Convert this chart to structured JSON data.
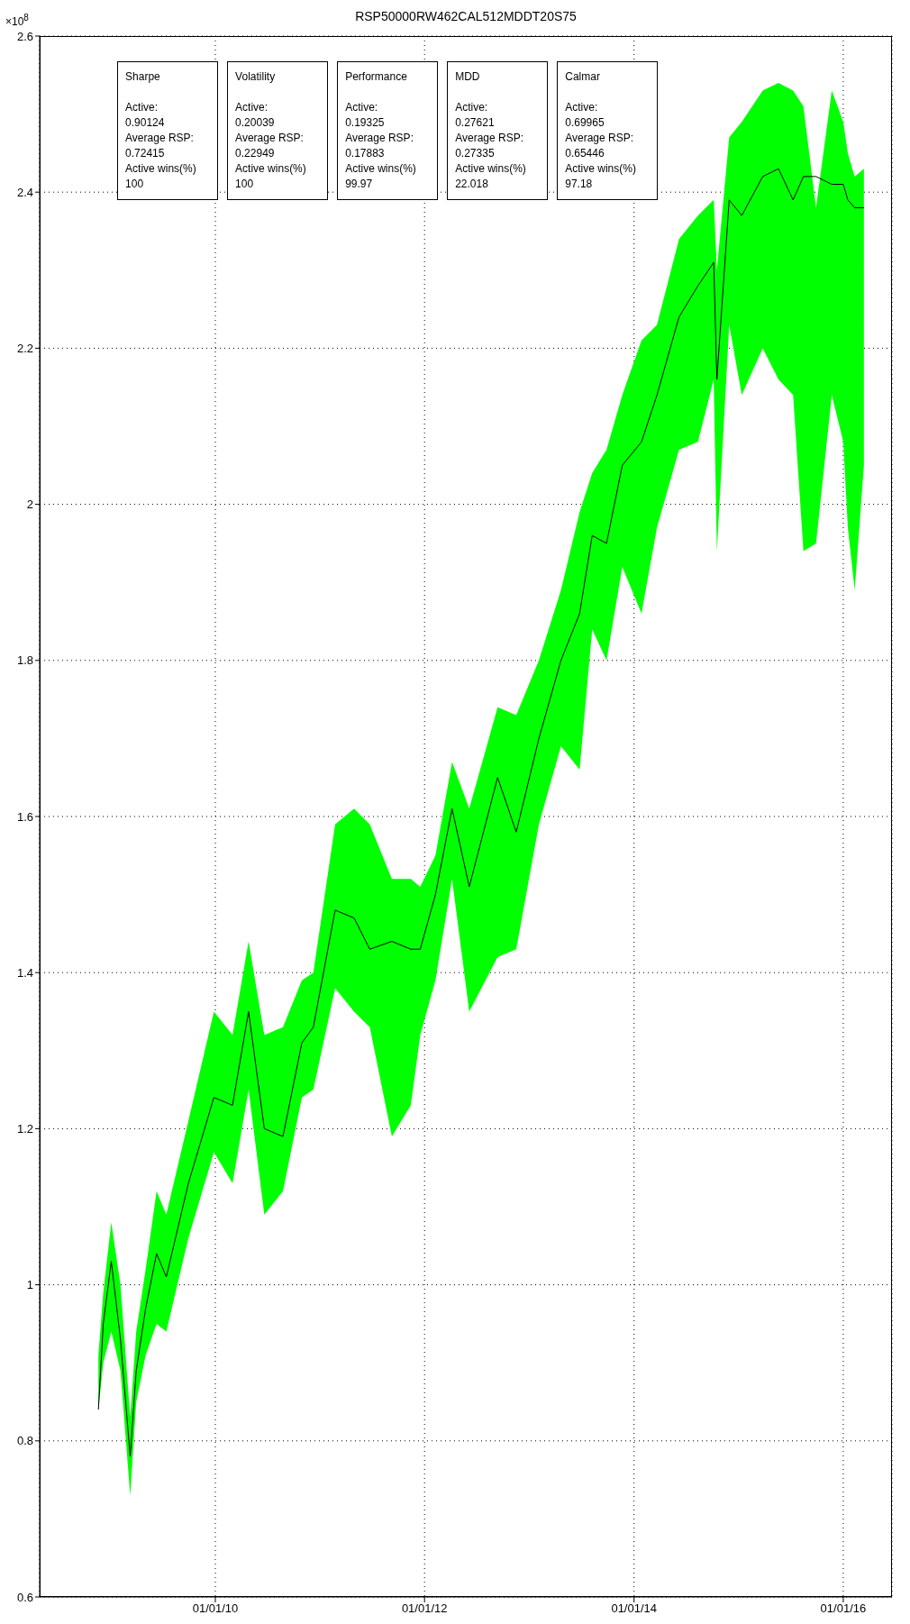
{
  "chart_data": {
    "type": "line",
    "title": "RSP50000RW462CAL512MDDT20S75",
    "ylabel": "×10$^{8}$",
    "x": [
      "2008-11-19",
      "2008-12-06",
      "2009-01-03",
      "2009-02-04",
      "2009-03-10",
      "2009-03-31",
      "2009-05-03",
      "2009-06-10",
      "2009-07-14",
      "2009-09-29",
      "2009-12-27",
      "2010-03-02",
      "2010-04-27",
      "2010-06-21",
      "2010-08-25",
      "2010-10-30",
      "2010-12-09",
      "2011-02-23",
      "2011-04-30",
      "2011-06-24",
      "2011-09-09",
      "2011-11-14",
      "2011-12-17",
      "2012-02-08",
      "2012-04-06",
      "2012-06-05",
      "2012-09-12",
      "2012-11-16",
      "2013-02-03",
      "2013-04-21",
      "2013-06-25",
      "2013-08-08",
      "2013-09-27",
      "2013-11-21",
      "2014-01-27",
      "2014-03-22",
      "2014-06-07",
      "2014-08-12",
      "2014-10-06",
      "2014-10-17",
      "2014-11-29",
      "2015-01-12",
      "2015-03-26",
      "2015-05-20",
      "2015-07-10",
      "2015-08-15",
      "2015-09-28",
      "2015-11-22",
      "2016-01-01",
      "2016-01-17",
      "2016-02-10",
      "2016-03-13"
    ],
    "series": [
      {
        "color": "#000000",
        "values": [
          0.84,
          0.95,
          1.03,
          0.93,
          0.78,
          0.89,
          0.97,
          1.04,
          1.01,
          1.13,
          1.24,
          1.23,
          1.35,
          1.2,
          1.19,
          1.31,
          1.33,
          1.48,
          1.47,
          1.43,
          1.44,
          1.43,
          1.43,
          1.5,
          1.61,
          1.51,
          1.65,
          1.58,
          1.7,
          1.8,
          1.86,
          1.96,
          1.95,
          2.05,
          2.08,
          2.14,
          2.24,
          2.28,
          2.31,
          2.16,
          2.39,
          2.37,
          2.42,
          2.43,
          2.39,
          2.42,
          2.42,
          2.41,
          2.41,
          2.39,
          2.38,
          2.38
        ],
        "upper": [
          0.91,
          0.99,
          1.08,
          1.0,
          0.83,
          0.94,
          1.02,
          1.12,
          1.09,
          1.21,
          1.35,
          1.32,
          1.44,
          1.32,
          1.33,
          1.39,
          1.4,
          1.59,
          1.61,
          1.59,
          1.52,
          1.52,
          1.51,
          1.55,
          1.67,
          1.61,
          1.74,
          1.73,
          1.8,
          1.89,
          1.99,
          2.04,
          2.07,
          2.14,
          2.21,
          2.23,
          2.34,
          2.37,
          2.39,
          2.3,
          2.47,
          2.49,
          2.53,
          2.54,
          2.53,
          2.51,
          2.38,
          2.53,
          2.49,
          2.45,
          2.42,
          2.43
        ],
        "lower": [
          0.84,
          0.9,
          0.94,
          0.89,
          0.73,
          0.85,
          0.91,
          0.95,
          0.94,
          1.06,
          1.17,
          1.13,
          1.25,
          1.09,
          1.12,
          1.24,
          1.25,
          1.38,
          1.35,
          1.33,
          1.19,
          1.23,
          1.32,
          1.39,
          1.52,
          1.35,
          1.42,
          1.43,
          1.59,
          1.69,
          1.66,
          1.84,
          1.8,
          1.92,
          1.86,
          1.97,
          2.07,
          2.08,
          2.16,
          1.94,
          2.23,
          2.14,
          2.2,
          2.16,
          2.14,
          1.94,
          1.95,
          2.14,
          2.08,
          1.97,
          1.89,
          2.05
        ]
      }
    ],
    "xlim": [
      "2008-04-28",
      "2016-06-19"
    ],
    "xticks": [
      {
        "value": "2010-01-01",
        "label": "01/01/10"
      },
      {
        "value": "2012-01-01",
        "label": "01/01/12"
      },
      {
        "value": "2014-01-01",
        "label": "01/01/14"
      },
      {
        "value": "2016-01-01",
        "label": "01/01/16"
      }
    ],
    "ylim": [
      0.6,
      2.6
    ],
    "yticks": [
      0.6,
      0.8,
      1,
      1.2,
      1.4,
      1.6,
      1.8,
      2,
      2.2,
      2.4,
      2.6
    ],
    "grid": true,
    "annotations": [
      "Sharpe\n\nActive:\n0.90124\nAverage RSP:\n0.72415\nActive wins(%)\n100",
      "Volatility\n\nActive:\n0.20039\nAverage RSP:\n0.22949\nActive wins(%)\n100",
      "Performance\n\nActive:\n0.19325\nAverage RSP:\n0.17883\nActive wins(%)\n99.97",
      "MDD\n\nActive:\n0.27621\nAverage RSP:\n0.27335\nActive wins(%)\n22.018",
      "Calmar\n\nActive:\n0.69965\nAverage RSP:\n0.65446\nActive wins(%)\n97.18"
    ]
  }
}
